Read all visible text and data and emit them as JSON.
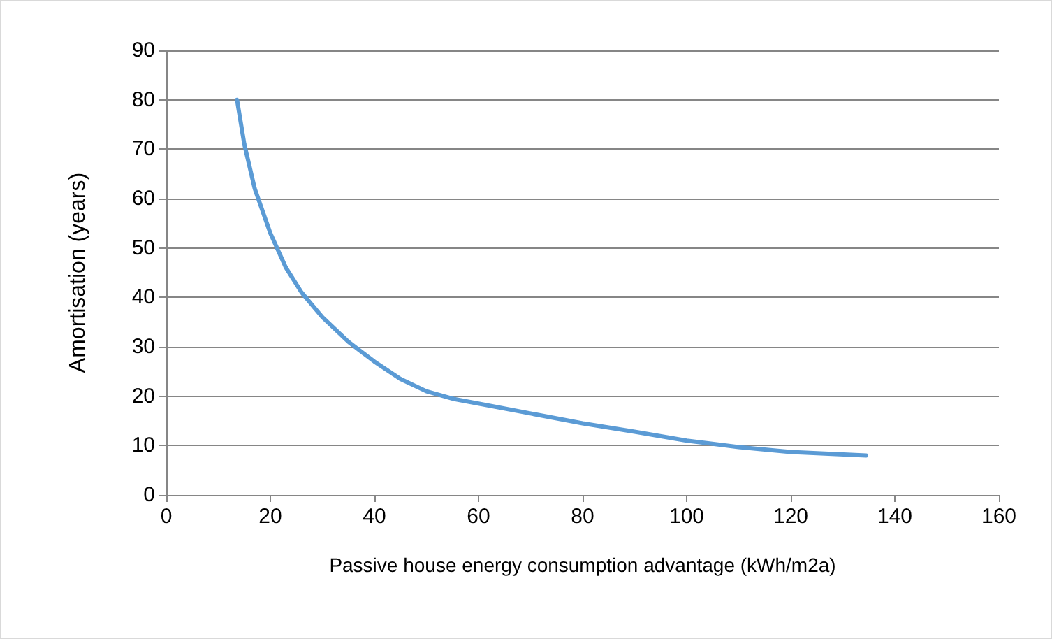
{
  "chart_data": {
    "type": "line",
    "xlabel": "Passive house energy consumption advantage (kWh/m2a)",
    "ylabel": "Amortisation (years)",
    "series": [
      {
        "color": "#5b9bd5",
        "x": [
          13.6,
          15,
          17,
          20,
          23,
          26,
          30,
          35,
          40,
          45,
          50,
          55,
          60,
          70,
          80,
          90,
          100,
          110,
          120,
          134.5
        ],
        "values": [
          80,
          71,
          62,
          53,
          46,
          41,
          36,
          31,
          27,
          23.5,
          21,
          19.5,
          18.5,
          16.5,
          14.5,
          12.8,
          11,
          9.7,
          8.7,
          8
        ]
      }
    ],
    "xlim": [
      0,
      160
    ],
    "xticks": [
      0,
      20,
      40,
      60,
      80,
      100,
      120,
      140,
      160
    ],
    "ylim": [
      0,
      90
    ],
    "yticks": [
      0,
      10,
      20,
      30,
      40,
      50,
      60,
      70,
      80,
      90
    ],
    "grid": "y",
    "marker": "none",
    "line_style": "solid"
  }
}
